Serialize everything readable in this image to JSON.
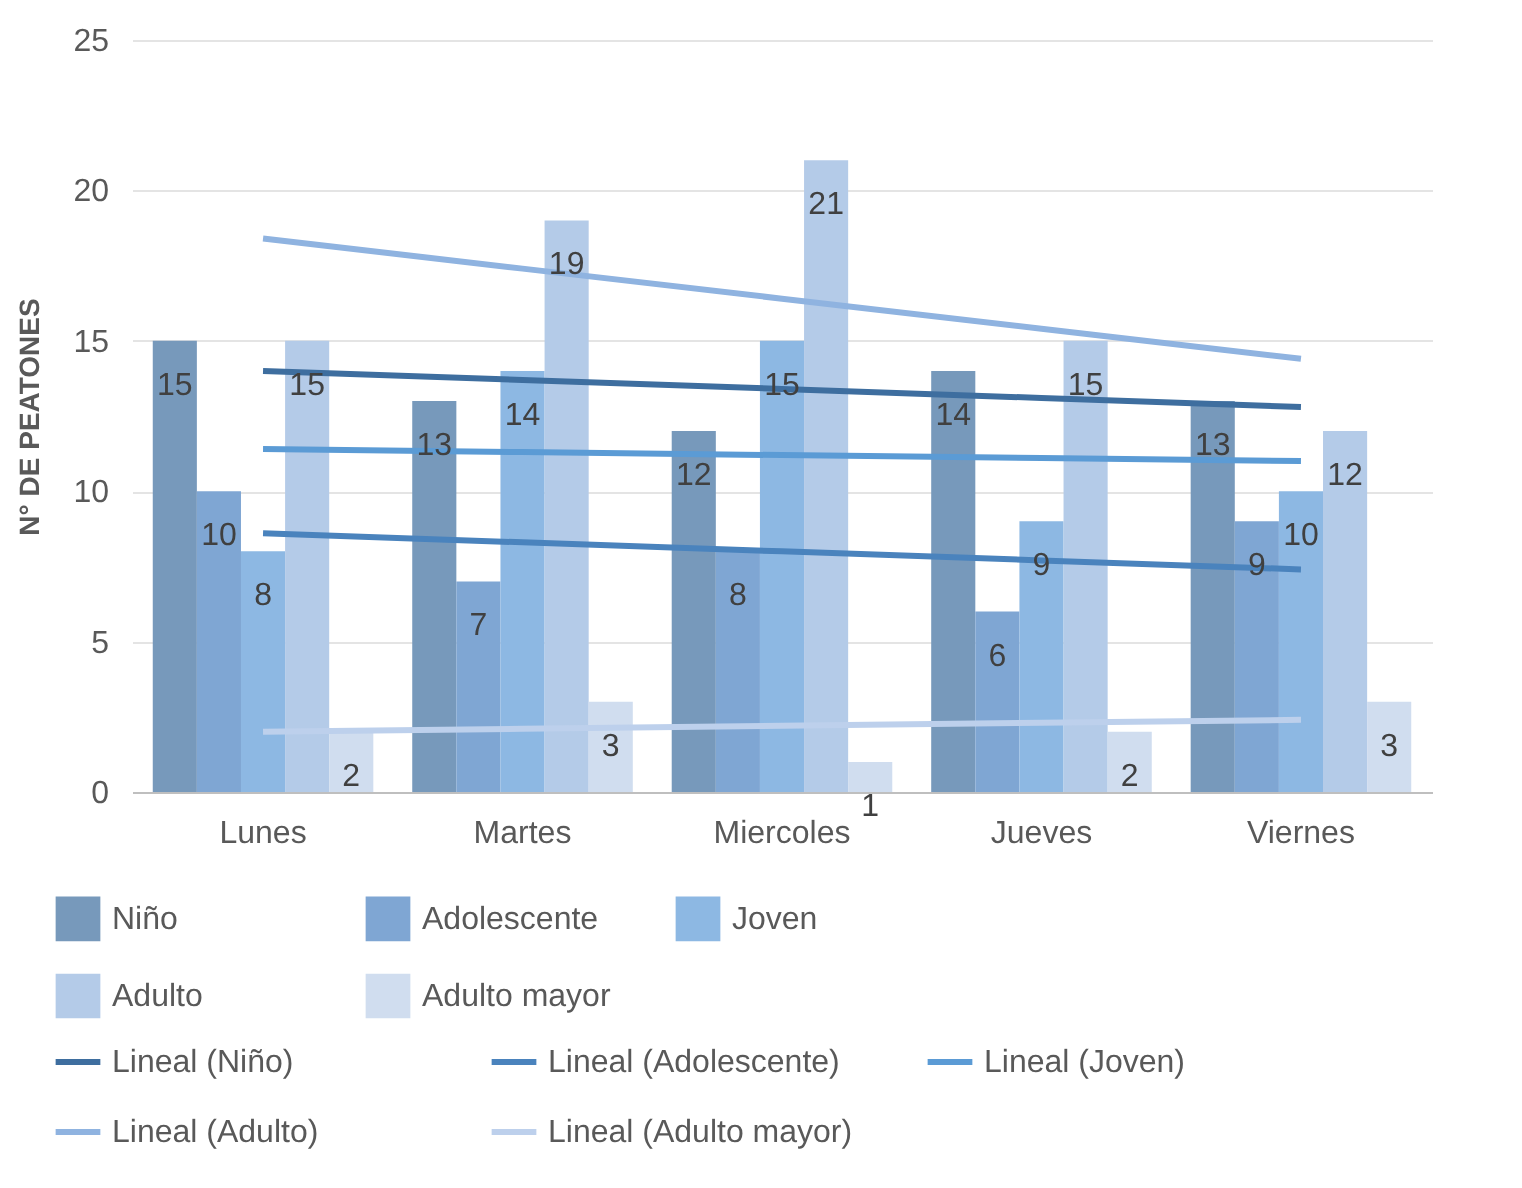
{
  "chart_data": {
    "type": "bar",
    "ylabel": "N° DE PEATONES",
    "categories": [
      "Lunes",
      "Martes",
      "Miercoles",
      "Jueves",
      "Viernes"
    ],
    "series": [
      {
        "name": "Niño",
        "color": "#7799bb",
        "values": [
          15,
          13,
          12,
          14,
          13
        ],
        "value_labels": [
          "15",
          "13",
          "12",
          "14",
          "13"
        ]
      },
      {
        "name": "Adolescente",
        "color": "#7fa6d3",
        "values": [
          10,
          7,
          8,
          6,
          9
        ],
        "value_labels": [
          "10",
          "7",
          "8",
          "6",
          "9"
        ]
      },
      {
        "name": "Joven",
        "color": "#8db8e3",
        "values": [
          8,
          14,
          15,
          9,
          10
        ],
        "value_labels": [
          "8",
          "14",
          "15",
          "9",
          "10"
        ]
      },
      {
        "name": "Adulto",
        "color": "#b4cbe8",
        "values": [
          15,
          19,
          21,
          15,
          12
        ],
        "value_labels": [
          "15",
          "19",
          "21",
          "15",
          "12"
        ]
      },
      {
        "name": "Adulto mayor",
        "color": "#d0ddef",
        "values": [
          2,
          3,
          1,
          2,
          3
        ],
        "value_labels": [
          "2",
          "3",
          "1",
          "2",
          "3"
        ]
      },
      {
        "name": "Lineal (Niño)",
        "type": "line",
        "color": "#3e6e9f",
        "values": [
          14.0,
          13.7,
          13.4,
          13.1,
          12.8
        ]
      },
      {
        "name": "Lineal (Adolescente)",
        "type": "line",
        "color": "#4a83bd",
        "values": [
          8.6,
          8.3,
          8.0,
          7.7,
          7.4
        ]
      },
      {
        "name": "Lineal (Joven)",
        "type": "line",
        "color": "#5b9bd5",
        "values": [
          11.4,
          11.3,
          11.2,
          11.1,
          11.0
        ]
      },
      {
        "name": "Lineal (Adulto)",
        "type": "line",
        "color": "#8fb3e0",
        "values": [
          18.4,
          17.4,
          16.4,
          15.4,
          14.4
        ]
      },
      {
        "name": "Lineal (Adulto mayor)",
        "type": "line",
        "color": "#bdd0ec",
        "values": [
          2.0,
          2.1,
          2.2,
          2.3,
          2.4
        ]
      }
    ],
    "ylim": [
      0,
      25
    ],
    "yticks": [
      0,
      5,
      10,
      15,
      20,
      25
    ],
    "grid": "y",
    "legend": "bottom"
  }
}
